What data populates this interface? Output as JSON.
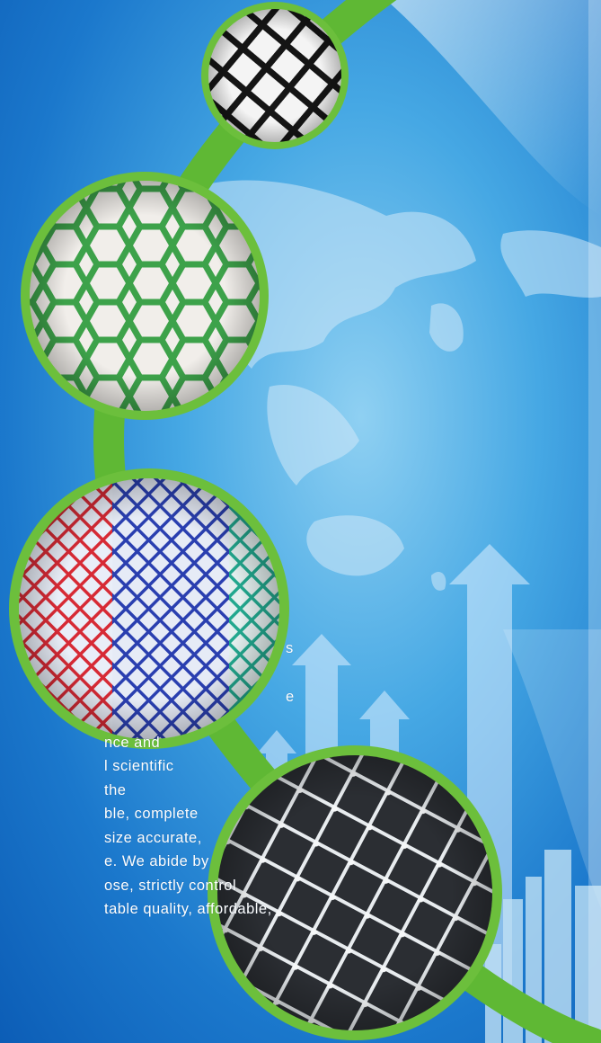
{
  "colors": {
    "ring_green": "#6cbf3c",
    "arc_green": "#5fb834",
    "bg_light": "#8fd0f2",
    "bg_dark": "#0c5db6",
    "text": "#ffffff"
  },
  "body_text": {
    "lines": [
      "s",
      "e",
      "nce and",
      "l scientific",
      "the",
      "ble, complete",
      "size accurate,",
      "e. We abide by",
      "ose, strictly control",
      "table quality, affordable,"
    ]
  },
  "icons": [
    "black-net-photo",
    "green-net-photo",
    "multicolor-net-photo",
    "white-knotted-net-photo",
    "world-map",
    "growth-arrow-icon",
    "city-skyline"
  ]
}
